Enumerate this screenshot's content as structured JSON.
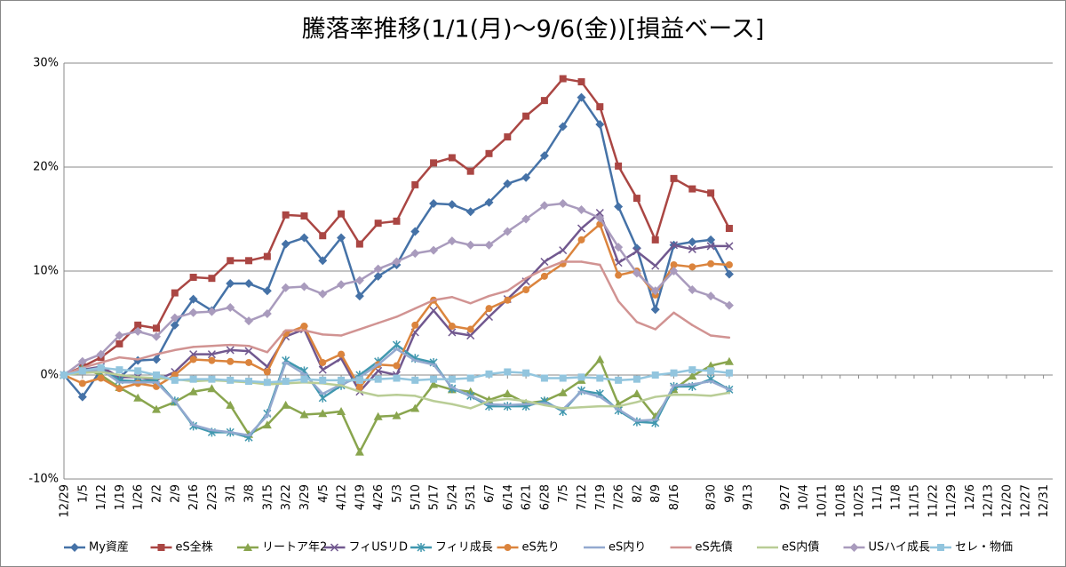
{
  "chart_data": {
    "type": "line",
    "title": "騰落率推移(1/1(月)～9/6(金))[損益ベース]",
    "categories": [
      "12/29",
      "1/5",
      "1/12",
      "1/19",
      "1/26",
      "2/2",
      "2/9",
      "2/16",
      "2/23",
      "3/1",
      "3/8",
      "3/15",
      "3/22",
      "3/29",
      "4/5",
      "4/12",
      "4/19",
      "4/26",
      "5/3",
      "5/10",
      "5/17",
      "5/24",
      "5/31",
      "6/7",
      "6/14",
      "6/21",
      "6/28",
      "7/5",
      "7/12",
      "7/19",
      "7/26",
      "8/2",
      "8/9",
      "8/16",
      null,
      "8/30",
      "9/6",
      "9/13",
      null,
      "9/27",
      "10/4",
      "10/11",
      "10/18",
      "10/25",
      "11/1",
      "11/8",
      "11/15",
      "11/22",
      "11/29",
      "12/6",
      "12/13",
      "12/20",
      "12/27",
      "12/31"
    ],
    "ylim": [
      -10,
      30
    ],
    "yticks": [
      {
        "value": -10,
        "label": "-10%"
      },
      {
        "value": 0,
        "label": "0%"
      },
      {
        "value": 10,
        "label": "10%"
      },
      {
        "value": 20,
        "label": "20%"
      },
      {
        "value": 30,
        "label": "30%"
      }
    ],
    "grid": true,
    "legend": "bottom",
    "series": [
      {
        "name": "My資産",
        "color": "#4572a7",
        "marker": "diamond",
        "values": [
          0,
          -2.1,
          0.5,
          -0.3,
          1.4,
          1.5,
          4.8,
          7.3,
          6.2,
          8.8,
          8.8,
          8.1,
          12.6,
          13.2,
          11.0,
          13.2,
          7.6,
          9.5,
          10.6,
          13.8,
          16.5,
          16.4,
          15.7,
          16.6,
          18.4,
          19.0,
          21.1,
          23.9,
          26.7,
          24.1,
          16.2,
          12.2,
          6.3,
          12.5,
          12.8,
          13.0,
          9.7,
          null,
          null,
          null,
          null,
          null,
          null,
          null,
          null,
          null,
          null,
          null,
          null,
          null,
          null,
          null,
          null,
          null
        ]
      },
      {
        "name": "eS全株",
        "color": "#aa4643",
        "marker": "square",
        "values": [
          0,
          0.8,
          1.7,
          3.0,
          4.8,
          4.5,
          7.9,
          9.4,
          9.3,
          11.0,
          11.0,
          11.4,
          15.4,
          15.3,
          13.4,
          15.5,
          12.6,
          14.6,
          14.8,
          18.3,
          20.4,
          20.9,
          19.6,
          21.3,
          22.9,
          24.9,
          26.4,
          28.5,
          28.2,
          25.8,
          20.1,
          17.0,
          13.0,
          18.9,
          17.9,
          17.5,
          14.1,
          null,
          null,
          null,
          null,
          null,
          null,
          null,
          null,
          null,
          null,
          null,
          null,
          null,
          null,
          null,
          null,
          null
        ]
      },
      {
        "name": "リートア年2",
        "color": "#89a54e",
        "marker": "triangle",
        "values": [
          0,
          0.7,
          0.0,
          -1.2,
          -2.2,
          -3.3,
          -2.6,
          -1.6,
          -1.3,
          -2.9,
          -5.7,
          -4.8,
          -2.9,
          -3.8,
          -3.7,
          -3.5,
          -7.4,
          -4.0,
          -3.9,
          -3.2,
          -0.9,
          -1.4,
          -1.6,
          -2.4,
          -1.8,
          -2.7,
          -2.5,
          -1.7,
          -0.5,
          1.5,
          -2.8,
          -1.8,
          -4.0,
          -1.4,
          -0.1,
          0.9,
          1.3,
          null,
          null,
          null,
          null,
          null,
          null,
          null,
          null,
          null,
          null,
          null,
          null,
          null,
          null,
          null,
          null,
          null
        ]
      },
      {
        "name": "フィUSリD",
        "color": "#71588f",
        "marker": "x",
        "values": [
          0,
          0.5,
          0.8,
          -0.2,
          -0.2,
          -0.5,
          0.3,
          2.0,
          2.0,
          2.4,
          2.3,
          0.8,
          3.7,
          4.4,
          0.5,
          1.6,
          -1.6,
          0.4,
          0.0,
          4.1,
          6.2,
          4.1,
          3.8,
          5.6,
          7.3,
          9.0,
          10.9,
          12.0,
          14.1,
          15.6,
          10.8,
          11.9,
          10.5,
          12.5,
          12.1,
          12.4,
          12.4,
          null,
          null,
          null,
          null,
          null,
          null,
          null,
          null,
          null,
          null,
          null,
          null,
          null,
          null,
          null,
          null,
          null
        ]
      },
      {
        "name": "フィリ成長",
        "color": "#4198af",
        "marker": "star",
        "values": [
          0,
          0.5,
          0.5,
          -0.5,
          -0.6,
          -0.5,
          -2.5,
          -4.9,
          -5.5,
          -5.5,
          -6.0,
          -3.7,
          1.4,
          0.4,
          -2.2,
          -1.0,
          0.0,
          1.3,
          2.9,
          1.6,
          1.2,
          -1.3,
          -2.0,
          -3.0,
          -3.0,
          -3.0,
          -2.5,
          -3.5,
          -1.5,
          -1.8,
          -3.4,
          -4.5,
          -4.6,
          -1.1,
          -1.1,
          -0.4,
          -1.4,
          null,
          null,
          null,
          null,
          null,
          null,
          null,
          null,
          null,
          null,
          null,
          null,
          null,
          null,
          null,
          null,
          null
        ]
      },
      {
        "name": "eS先り",
        "color": "#db843d",
        "marker": "circle",
        "values": [
          0,
          -0.8,
          -0.3,
          -1.3,
          -0.8,
          -1.1,
          0.0,
          1.5,
          1.4,
          1.3,
          1.2,
          0.3,
          4.0,
          4.7,
          1.2,
          2.0,
          -1.2,
          1.0,
          0.9,
          4.8,
          7.2,
          4.7,
          4.4,
          6.4,
          7.2,
          8.2,
          9.5,
          10.7,
          13.0,
          14.5,
          9.6,
          10.0,
          7.7,
          10.6,
          10.4,
          10.7,
          10.6,
          null,
          null,
          null,
          null,
          null,
          null,
          null,
          null,
          null,
          null,
          null,
          null,
          null,
          null,
          null,
          null,
          null
        ]
      },
      {
        "name": "eS内り",
        "color": "#93a9cf",
        "marker": "dash",
        "values": [
          0,
          0.3,
          0.5,
          -0.7,
          -0.7,
          -0.7,
          -2.5,
          -4.8,
          -5.3,
          -5.5,
          -5.8,
          -3.9,
          1.2,
          0.1,
          -1.8,
          -0.9,
          -0.2,
          1.0,
          2.5,
          1.4,
          1.0,
          -1.2,
          -2.0,
          -2.8,
          -2.9,
          -2.8,
          -2.7,
          -3.3,
          -1.6,
          -2.1,
          -3.3,
          -4.4,
          -4.3,
          -1.0,
          -0.9,
          -0.6,
          -1.4,
          null,
          null,
          null,
          null,
          null,
          null,
          null,
          null,
          null,
          null,
          null,
          null,
          null,
          null,
          null,
          null,
          null
        ]
      },
      {
        "name": "eS先債",
        "color": "#d19392",
        "marker": "none",
        "values": [
          0,
          0.7,
          1.2,
          1.7,
          1.5,
          2.0,
          2.4,
          2.7,
          2.8,
          2.9,
          2.8,
          2.2,
          4.3,
          4.3,
          3.9,
          3.8,
          4.4,
          5.0,
          5.6,
          6.4,
          7.2,
          7.5,
          6.9,
          7.6,
          8.1,
          9.3,
          10.2,
          10.9,
          10.9,
          10.6,
          7.1,
          5.1,
          4.4,
          6.0,
          4.8,
          3.8,
          3.6,
          null,
          null,
          null,
          null,
          null,
          null,
          null,
          null,
          null,
          null,
          null,
          null,
          null,
          null,
          null,
          null,
          null
        ]
      },
      {
        "name": "eS内債",
        "color": "#b9cd96",
        "marker": "none",
        "values": [
          0,
          0.2,
          0.3,
          0.0,
          -0.2,
          -0.3,
          -0.4,
          -0.6,
          -0.5,
          -0.6,
          -0.7,
          -0.9,
          -0.8,
          -0.7,
          -0.8,
          -1.0,
          -1.6,
          -2.0,
          -1.9,
          -2.0,
          -2.5,
          -2.8,
          -3.2,
          -2.5,
          -2.3,
          -2.5,
          -2.9,
          -3.2,
          -3.1,
          -3.0,
          -3.0,
          -2.6,
          -2.1,
          -1.9,
          -1.9,
          -2.0,
          -1.7,
          null,
          null,
          null,
          null,
          null,
          null,
          null,
          null,
          null,
          null,
          null,
          null,
          null,
          null,
          null,
          null,
          null
        ]
      },
      {
        "name": "USハイ成長",
        "color": "#a99bbd",
        "marker": "diamond",
        "values": [
          0,
          1.3,
          2.0,
          3.8,
          4.2,
          3.7,
          5.5,
          6.0,
          6.1,
          6.5,
          5.2,
          5.9,
          8.4,
          8.5,
          7.8,
          8.7,
          9.1,
          10.2,
          10.9,
          11.7,
          12.0,
          12.9,
          12.5,
          12.5,
          13.8,
          15.0,
          16.3,
          16.5,
          15.9,
          15.1,
          12.3,
          9.8,
          8.1,
          10.0,
          8.2,
          7.6,
          6.7,
          null,
          null,
          null,
          null,
          null,
          null,
          null,
          null,
          null,
          null,
          null,
          null,
          null,
          null,
          null,
          null,
          null
        ]
      },
      {
        "name": "セレ・物価",
        "color": "#92c5de",
        "marker": "square",
        "values": [
          0,
          0.4,
          0.7,
          0.5,
          0.4,
          0.0,
          -0.5,
          -0.4,
          -0.4,
          -0.5,
          -0.6,
          -0.7,
          -0.6,
          -0.4,
          -0.5,
          -0.5,
          -0.5,
          -0.4,
          -0.3,
          -0.5,
          -0.4,
          -0.4,
          -0.3,
          0.1,
          0.3,
          0.2,
          -0.3,
          -0.3,
          -0.2,
          -0.3,
          -0.5,
          -0.4,
          0.0,
          0.2,
          0.5,
          0.4,
          0.2,
          null,
          null,
          null,
          null,
          null,
          null,
          null,
          null,
          null,
          null,
          null,
          null,
          null,
          null,
          null,
          null,
          null
        ]
      }
    ]
  }
}
